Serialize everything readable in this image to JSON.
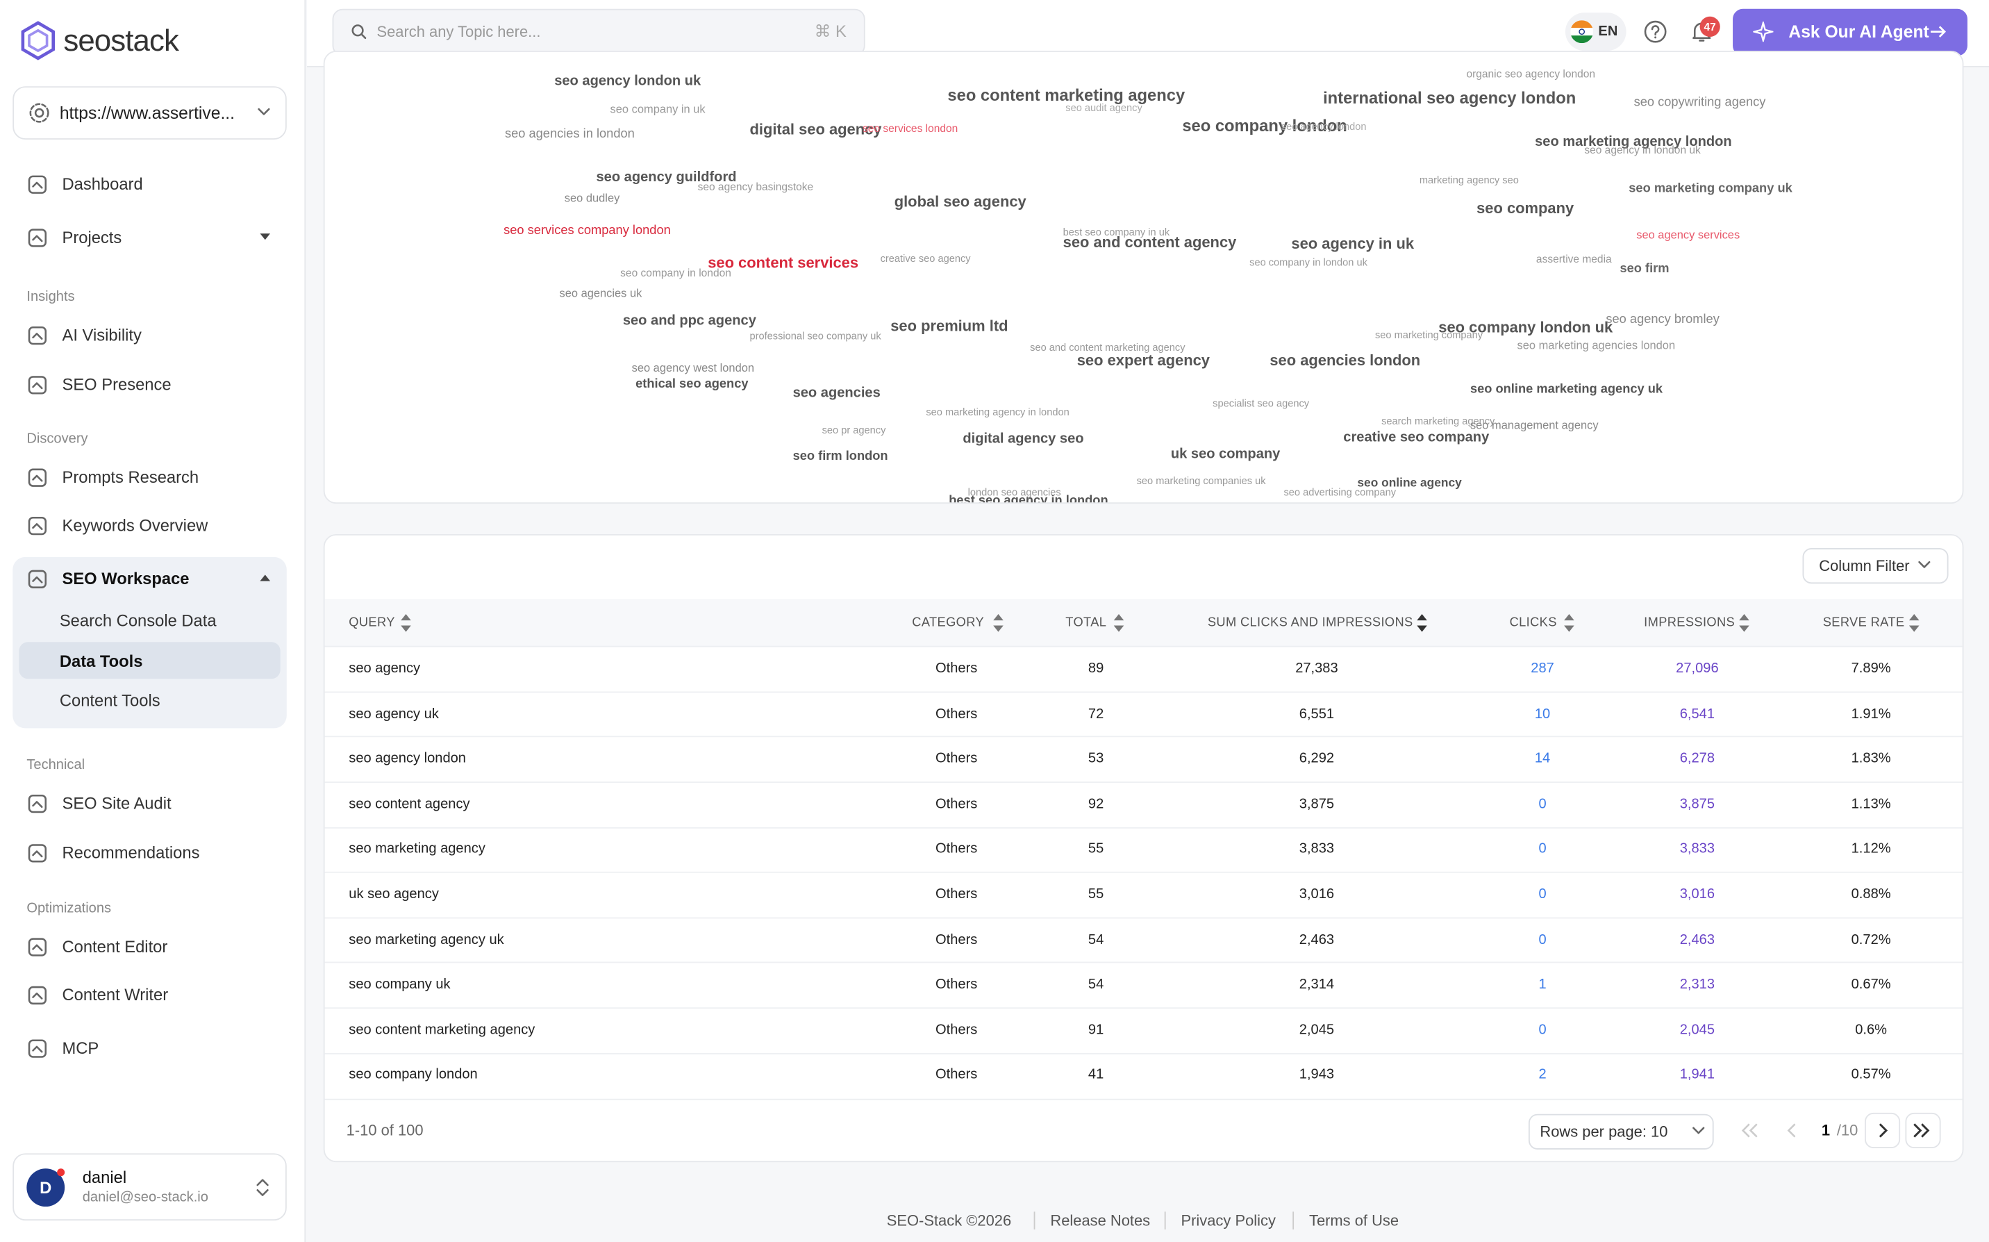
{
  "sidebar": {
    "brand": "seostack",
    "site": "https://www.assertive...",
    "top": [
      "Dashboard",
      "Projects"
    ],
    "groups": [
      {
        "title": "Insights",
        "items": [
          "AI Visibility",
          "SEO Presence"
        ]
      },
      {
        "title": "Discovery",
        "items": [
          "Prompts Research",
          "Keywords Overview"
        ]
      }
    ],
    "workspace": {
      "title": "SEO Workspace",
      "items": [
        "Search Console Data",
        "Data Tools",
        "Content Tools"
      ]
    },
    "groups2": [
      {
        "title": "Technical",
        "items": [
          "SEO Site Audit",
          "Recommendations"
        ]
      },
      {
        "title": "Optimizations",
        "items": [
          "Content Editor",
          "Content Writer",
          "MCP"
        ]
      }
    ],
    "user": {
      "initial": "D",
      "name": "daniel",
      "email": "daniel@seo-stack.io"
    }
  },
  "header": {
    "search": "Search any Topic here...",
    "shortcut": "⌘ K",
    "language": "EN",
    "notifications": "47",
    "cta": "Ask Our AI Agent"
  },
  "word_cloud": [
    "seo agency london uk",
    "seo company in uk",
    "seo agencies in london",
    "digital seo agency",
    "seo services london",
    "seo content marketing agency",
    "seo audit agency",
    "seo company london",
    "seo agency london",
    "international seo agency london",
    "organic seo agency london",
    "seo copywriting agency",
    "seo marketing agency london",
    "seo agency in london uk",
    "seo agency guildford",
    "seo agency basingstoke",
    "seo dudley",
    "global seo agency",
    "marketing agency seo",
    "seo company",
    "seo marketing company uk",
    "seo services company london",
    "seo content services",
    "best seo company in uk",
    "seo and content agency",
    "seo agency in uk",
    "creative seo agency",
    "seo company in london uk",
    "seo agency services",
    "assertive media",
    "seo firm",
    "seo company in london",
    "seo agencies uk",
    "seo and ppc agency",
    "professional seo company uk",
    "seo premium ltd",
    "seo and content marketing agency",
    "seo expert agency",
    "seo agencies london",
    "seo company london uk",
    "seo marketing company",
    "seo agency bromley",
    "seo marketing agencies london",
    "seo agency west london",
    "ethical seo agency",
    "seo agencies",
    "seo online marketing agency uk",
    "specialist seo agency",
    "seo marketing agency in london",
    "search marketing agency",
    "seo management agency",
    "seo pr agency",
    "digital agency seo",
    "creative seo company",
    "seo firm london",
    "uk seo company",
    "seo marketing companies uk",
    "seo online agency",
    "seo advertising company",
    "london seo agencies",
    "best seo agency in london"
  ],
  "table": {
    "filter": "Column Filter",
    "columns": [
      "QUERY",
      "CATEGORY",
      "TOTAL",
      "SUM CLICKS AND IMPRESSIONS",
      "CLICKS",
      "IMPRESSIONS",
      "SERVE RATE"
    ],
    "rows": [
      [
        "seo agency",
        "Others",
        "89",
        "27,383",
        "287",
        "27,096",
        "7.89%"
      ],
      [
        "seo agency uk",
        "Others",
        "72",
        "6,551",
        "10",
        "6,541",
        "1.91%"
      ],
      [
        "seo agency london",
        "Others",
        "53",
        "6,292",
        "14",
        "6,278",
        "1.83%"
      ],
      [
        "seo content agency",
        "Others",
        "92",
        "3,875",
        "0",
        "3,875",
        "1.13%"
      ],
      [
        "seo marketing agency",
        "Others",
        "55",
        "3,833",
        "0",
        "3,833",
        "1.12%"
      ],
      [
        "uk seo agency",
        "Others",
        "55",
        "3,016",
        "0",
        "3,016",
        "0.88%"
      ],
      [
        "seo marketing agency uk",
        "Others",
        "54",
        "2,463",
        "0",
        "2,463",
        "0.72%"
      ],
      [
        "seo company uk",
        "Others",
        "54",
        "2,314",
        "1",
        "2,313",
        "0.67%"
      ],
      [
        "seo content marketing agency",
        "Others",
        "91",
        "2,045",
        "0",
        "2,045",
        "0.6%"
      ],
      [
        "seo company london",
        "Others",
        "41",
        "1,943",
        "2",
        "1,941",
        "0.57%"
      ]
    ],
    "range": "1-10 of 100",
    "rows_per_page": "Rows per page: 10",
    "page": "1",
    "pages": "/10"
  },
  "footer": [
    "SEO-Stack ©2026",
    "Release Notes",
    "Privacy Policy",
    "Terms of Use"
  ]
}
